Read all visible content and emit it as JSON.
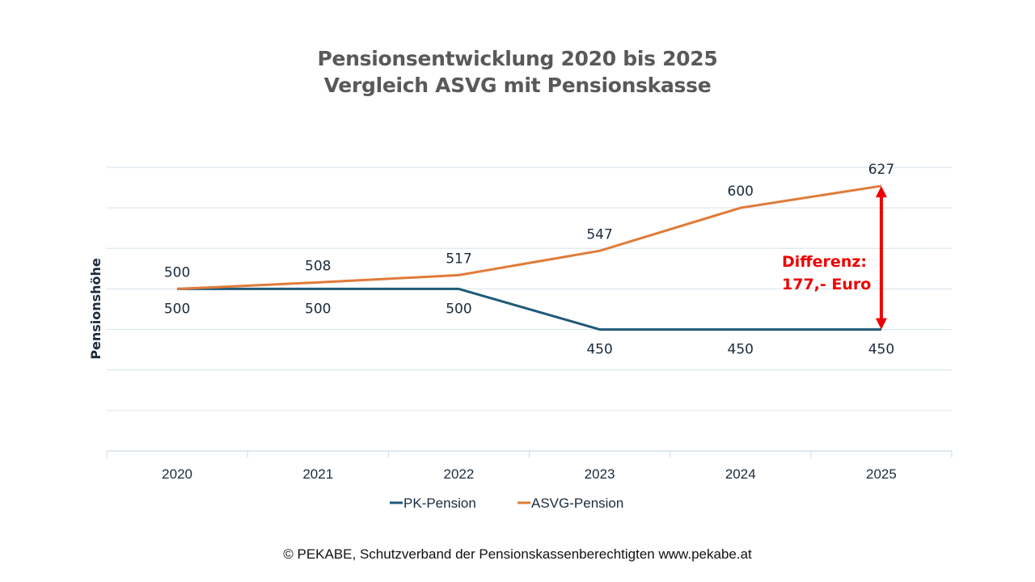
{
  "chart_data": {
    "type": "line",
    "title": [
      "Pensionsentwicklung 2020 bis 2025",
      "Vergleich ASVG mit Pensionskasse"
    ],
    "xlabel": "",
    "ylabel": "Pensionshöhe",
    "categories": [
      "2020",
      "2021",
      "2022",
      "2023",
      "2024",
      "2025"
    ],
    "ylim": [
      300,
      650
    ],
    "y_gridlines": [
      350,
      400,
      450,
      500,
      550,
      600,
      650
    ],
    "grid": true,
    "legend_position": "bottom",
    "series": [
      {
        "name": "PK-Pension",
        "color": "#1f5a78",
        "values": [
          500,
          500,
          500,
          450,
          450,
          450
        ],
        "labels": [
          "500",
          "500",
          "500",
          "450",
          "450",
          "450"
        ],
        "label_position": "below"
      },
      {
        "name": "ASVG-Pension",
        "color": "#e07b39",
        "values": [
          500,
          508,
          517,
          547,
          600,
          627
        ],
        "labels": [
          "500",
          "508",
          "517",
          "547",
          "600",
          "627"
        ],
        "label_position": "above"
      }
    ],
    "annotation": {
      "lines": [
        "Differenz:",
        "177,- Euro"
      ],
      "color": "#ee0000",
      "from_value": 450,
      "to_value": 627,
      "at_category": "2025"
    }
  },
  "footer": "© PEKABE, Schutzverband der Pensionskassenberechtigten www.pekabe.at"
}
